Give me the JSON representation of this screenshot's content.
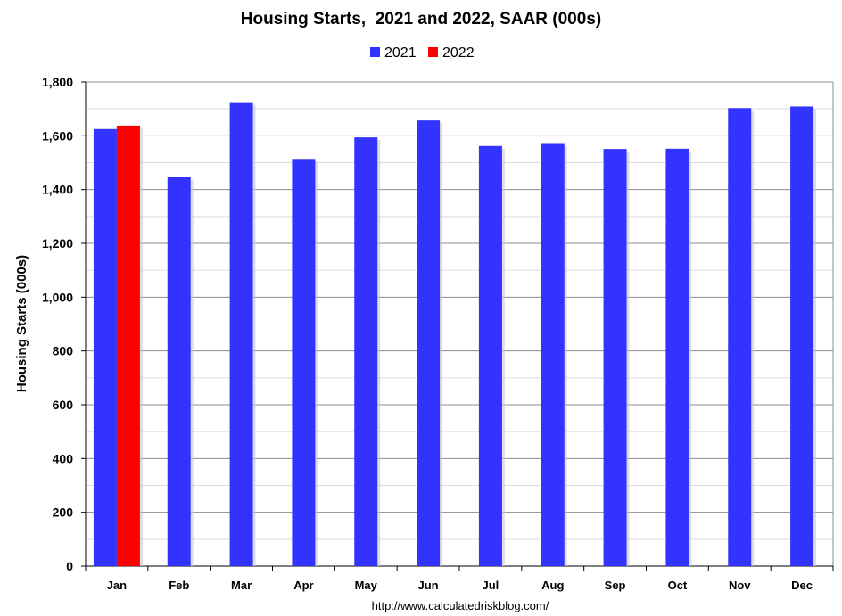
{
  "chart_data": {
    "type": "bar",
    "title": "Housing Starts,  2021 and 2022, SAAR (000s)",
    "ylabel": "Housing Starts (000s)",
    "xlabel": "",
    "source": "http://www.calculatedriskblog.com/",
    "categories": [
      "Jan",
      "Feb",
      "Mar",
      "Apr",
      "May",
      "Jun",
      "Jul",
      "Aug",
      "Sep",
      "Oct",
      "Nov",
      "Dec"
    ],
    "ylim": [
      0,
      1800
    ],
    "yticks": [
      0,
      200,
      400,
      600,
      800,
      1000,
      1200,
      1400,
      1600,
      1800
    ],
    "ytick_labels": [
      "0",
      "200",
      "400",
      "600",
      "800",
      "1,000",
      "1,200",
      "1,400",
      "1,600",
      "1,800"
    ],
    "grid": true,
    "legend_position": "top",
    "series": [
      {
        "name": "2021",
        "color": "#3333ff",
        "values": [
          1625,
          1447,
          1725,
          1514,
          1594,
          1657,
          1562,
          1573,
          1551,
          1552,
          1703,
          1709
        ]
      },
      {
        "name": "2022",
        "color": "#ff0000",
        "values": [
          1638,
          null,
          null,
          null,
          null,
          null,
          null,
          null,
          null,
          null,
          null,
          null
        ]
      }
    ]
  }
}
